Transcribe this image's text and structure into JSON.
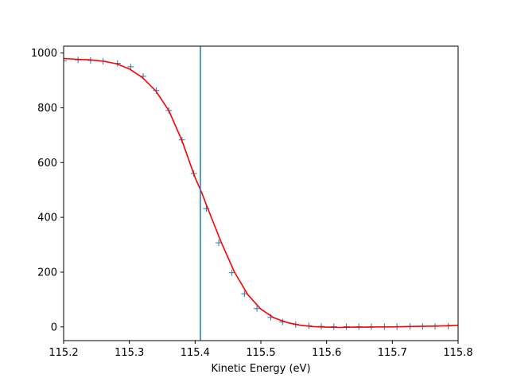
{
  "chart_data": {
    "type": "scatter",
    "title": "",
    "xlabel": "Kinetic Energy (eV)",
    "ylabel": "",
    "xlim": [
      115.2,
      115.8
    ],
    "ylim": [
      -50,
      1025
    ],
    "grid": false,
    "legend": "none",
    "xticks": [
      {
        "value": 115.2,
        "label": "115.2"
      },
      {
        "value": 115.3,
        "label": "115.3"
      },
      {
        "value": 115.4,
        "label": "115.4"
      },
      {
        "value": 115.5,
        "label": "115.5"
      },
      {
        "value": 115.6,
        "label": "115.6"
      },
      {
        "value": 115.7,
        "label": "115.7"
      },
      {
        "value": 115.8,
        "label": "115.8"
      }
    ],
    "yticks": [
      {
        "value": 0,
        "label": "0"
      },
      {
        "value": 200,
        "label": "200"
      },
      {
        "value": 400,
        "label": "400"
      },
      {
        "value": 600,
        "label": "600"
      },
      {
        "value": 800,
        "label": "800"
      },
      {
        "value": 1000,
        "label": "1000"
      }
    ],
    "series": [
      {
        "kind": "scatter",
        "marker": "plus",
        "color": "#1f77b4",
        "x": [
          115.2,
          115.222,
          115.241,
          115.26,
          115.282,
          115.302,
          115.321,
          115.341,
          115.36,
          115.38,
          115.398,
          115.417,
          115.436,
          115.456,
          115.475,
          115.494,
          115.515,
          115.533,
          115.553,
          115.573,
          115.592,
          115.611,
          115.63,
          115.649,
          115.668,
          115.688,
          115.707,
          115.727,
          115.746,
          115.765,
          115.785
        ],
        "y": [
          972,
          975,
          973,
          970,
          962,
          950,
          915,
          863,
          790,
          683,
          560,
          432,
          307,
          198,
          121,
          67,
          35,
          18,
          9,
          4,
          2,
          1,
          1,
          1,
          1,
          1,
          1,
          2,
          2,
          2,
          3
        ]
      },
      {
        "kind": "line",
        "color": "#ff0000",
        "x": [
          115.2,
          115.22,
          115.24,
          115.26,
          115.28,
          115.3,
          115.32,
          115.34,
          115.36,
          115.38,
          115.4,
          115.41,
          115.42,
          115.44,
          115.46,
          115.48,
          115.5,
          115.52,
          115.54,
          115.56,
          115.58,
          115.6,
          115.62,
          115.64,
          115.66,
          115.68,
          115.7,
          115.72,
          115.74,
          115.76,
          115.78,
          115.8
        ],
        "y": [
          980,
          977,
          975,
          970,
          961,
          942,
          910,
          862,
          790,
          680,
          545,
          490,
          428,
          307,
          200,
          118,
          65,
          33,
          16,
          6,
          1,
          -1,
          -2,
          -1,
          -1,
          0,
          0,
          1,
          2,
          3,
          4,
          6
        ]
      },
      {
        "kind": "vline",
        "color": "#1f77b4",
        "x": 115.408
      }
    ]
  }
}
